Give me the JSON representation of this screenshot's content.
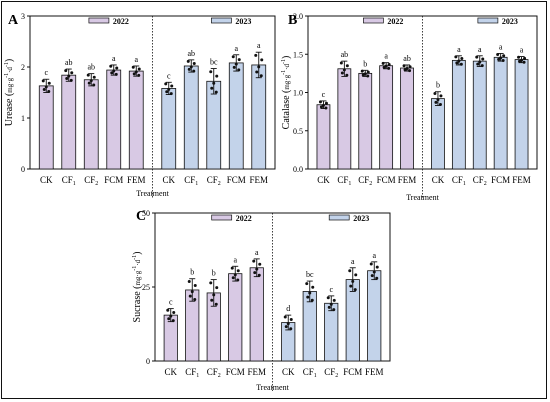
{
  "figure": {
    "colors": {
      "2022": "#d8c9e4",
      "2023": "#c3d3ea",
      "edge": "#111111",
      "dot": "#111111"
    }
  },
  "chart_data": [
    {
      "type": "bar",
      "panel": "A",
      "ylabel": "Urease (mg·g⁻¹·d⁻¹)",
      "xlabel": "Treatment",
      "ylim": [
        0,
        3
      ],
      "yticks": [
        "0",
        "1",
        "2",
        "3"
      ],
      "categories": [
        "CK",
        "CF1",
        "CF2",
        "FCM",
        "FEM"
      ],
      "legend": [
        "2022",
        "2023"
      ],
      "series": [
        {
          "name": "2022",
          "values": [
            1.63,
            1.84,
            1.75,
            1.94,
            1.92
          ],
          "errors": [
            0.13,
            0.12,
            0.12,
            0.1,
            0.1
          ],
          "labels": [
            "c",
            "ab",
            "ab",
            "a",
            "a"
          ]
        },
        {
          "name": "2023",
          "values": [
            1.58,
            2.02,
            1.72,
            2.08,
            2.04
          ],
          "errors": [
            0.12,
            0.12,
            0.25,
            0.16,
            0.25
          ],
          "labels": [
            "c",
            "ab",
            "bc",
            "a",
            "a"
          ]
        }
      ]
    },
    {
      "type": "bar",
      "panel": "B",
      "ylabel": "Catalase (mg·g⁻¹·d⁻¹)",
      "xlabel": "Treatment",
      "ylim": [
        0,
        2.0
      ],
      "yticks": [
        "0.0",
        "0.5",
        "1.0",
        "1.5",
        "2.0"
      ],
      "categories": [
        "CK",
        "CF1",
        "CF2",
        "FCM",
        "FEM"
      ],
      "legend": [
        "2022",
        "2023"
      ],
      "series": [
        {
          "name": "2022",
          "values": [
            0.84,
            1.31,
            1.25,
            1.35,
            1.32
          ],
          "errors": [
            0.05,
            0.1,
            0.04,
            0.04,
            0.04
          ],
          "labels": [
            "c",
            "ab",
            "b",
            "a",
            "ab"
          ]
        },
        {
          "name": "2023",
          "values": [
            0.92,
            1.42,
            1.41,
            1.46,
            1.43
          ],
          "errors": [
            0.09,
            0.06,
            0.07,
            0.05,
            0.04
          ],
          "labels": [
            "b",
            "a",
            "a",
            "a",
            "a"
          ]
        }
      ]
    },
    {
      "type": "bar",
      "panel": "C",
      "ylabel": "Sucrase (mg·g⁻¹·d⁻¹)",
      "xlabel": "Treatment",
      "ylim": [
        0,
        50
      ],
      "yticks": [
        "0",
        "25",
        "50"
      ],
      "categories": [
        "CK",
        "CF1",
        "CF2",
        "FCM",
        "FEM"
      ],
      "legend": [
        "2022",
        "2023"
      ],
      "series": [
        {
          "name": "2022",
          "values": [
            15.5,
            24,
            23,
            29.5,
            31.5
          ],
          "errors": [
            2.2,
            3.8,
            4.5,
            2.5,
            3
          ],
          "labels": [
            "c",
            "b",
            "b",
            "a",
            "a"
          ]
        },
        {
          "name": "2023",
          "values": [
            13,
            23.5,
            19.5,
            27.5,
            30.5
          ],
          "errors": [
            2.5,
            3.5,
            2.5,
            4,
            3
          ],
          "labels": [
            "d",
            "bc",
            "c",
            "a",
            "a"
          ]
        }
      ]
    }
  ]
}
